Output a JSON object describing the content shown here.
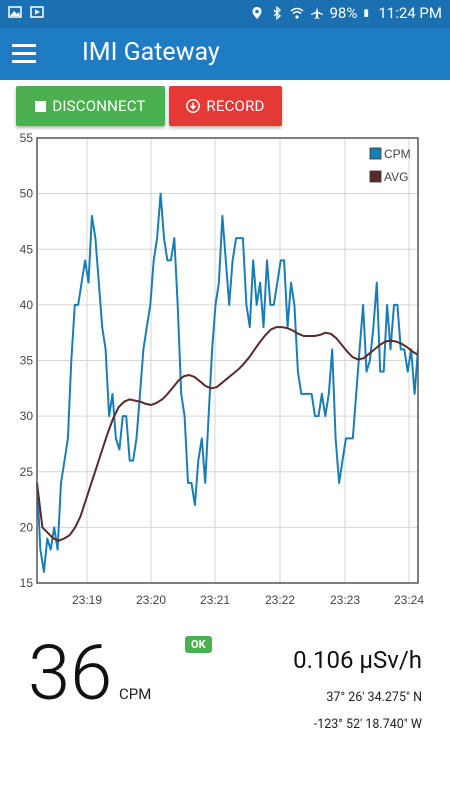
{
  "status_bar": {
    "battery": "98%",
    "time": "11:24 PM",
    "icons": [
      "gallery-icon",
      "play-store-icon",
      "location-icon",
      "bluetooth-icon",
      "wifi-icon",
      "airplane-icon",
      "battery-icon"
    ]
  },
  "app_bar": {
    "title": "IMI Gateway",
    "menu_icon": "hamburger-menu-icon"
  },
  "buttons": {
    "disconnect": "DISCONNECT",
    "record": "RECORD",
    "disconnect_color": "#4caf50",
    "record_color": "#e53935"
  },
  "chart_data": {
    "type": "line",
    "x_ticks": [
      "23:19",
      "23:20",
      "23:21",
      "23:22",
      "23:23",
      "23:24"
    ],
    "y_ticks": [
      "55",
      "50",
      "45",
      "40",
      "35",
      "30",
      "25",
      "20",
      "15"
    ],
    "ylim": [
      15,
      55
    ],
    "grid": true,
    "legend_position": "top-right",
    "series": [
      {
        "name": "CPM",
        "color": "#1a7db8",
        "values": [
          24,
          18,
          16,
          19,
          18,
          20,
          18,
          24,
          26,
          28,
          35,
          40,
          40,
          42,
          44,
          42,
          48,
          46,
          42,
          38,
          36,
          30,
          32,
          28,
          27,
          30,
          30,
          26,
          26,
          28,
          32,
          36,
          38,
          40,
          44,
          46,
          50,
          46,
          44,
          44,
          46,
          40,
          32,
          30,
          24,
          24,
          22,
          26,
          28,
          24,
          30,
          36,
          40,
          42,
          48,
          44,
          40,
          44,
          46,
          46,
          46,
          40,
          38,
          44,
          40,
          42,
          38,
          44,
          40,
          40,
          42,
          44,
          44,
          38,
          42,
          40,
          34,
          32,
          32,
          32,
          32,
          30,
          30,
          32,
          30,
          32,
          36,
          28,
          24,
          26,
          28,
          28,
          28,
          32,
          36,
          40,
          34,
          35,
          38,
          42,
          34,
          34,
          40,
          36,
          40,
          40,
          36,
          36,
          34,
          36,
          32,
          36
        ]
      },
      {
        "name": "AVG",
        "color": "#5a2a2a",
        "values": [
          24,
          20,
          19.5,
          19,
          18.8,
          19,
          19.3,
          20,
          21,
          22.5,
          24,
          25.5,
          27,
          28.5,
          29.8,
          30.8,
          31.3,
          31.5,
          31.4,
          31.3,
          31.1,
          31,
          31.2,
          31.5,
          32,
          32.6,
          33.2,
          33.6,
          33.7,
          33.5,
          33.1,
          32.7,
          32.5,
          32.6,
          33,
          33.4,
          33.8,
          34.2,
          34.7,
          35.3,
          36,
          36.7,
          37.3,
          37.8,
          38,
          38,
          37.9,
          37.7,
          37.4,
          37.2,
          37.2,
          37.2,
          37.3,
          37.5,
          37.4,
          37,
          36.4,
          35.8,
          35.3,
          35.1,
          35.2,
          35.6,
          36,
          36.4,
          36.7,
          36.8,
          36.7,
          36.5,
          36.2,
          35.8,
          35.5
        ]
      }
    ]
  },
  "readings": {
    "cpm_value": "36",
    "cpm_unit": "CPM",
    "status_badge": "OK",
    "dose_rate": "0.106 µSv/h",
    "latitude": "37° 26' 34.275\" N",
    "longitude": "-123° 52' 18.740\" W"
  }
}
